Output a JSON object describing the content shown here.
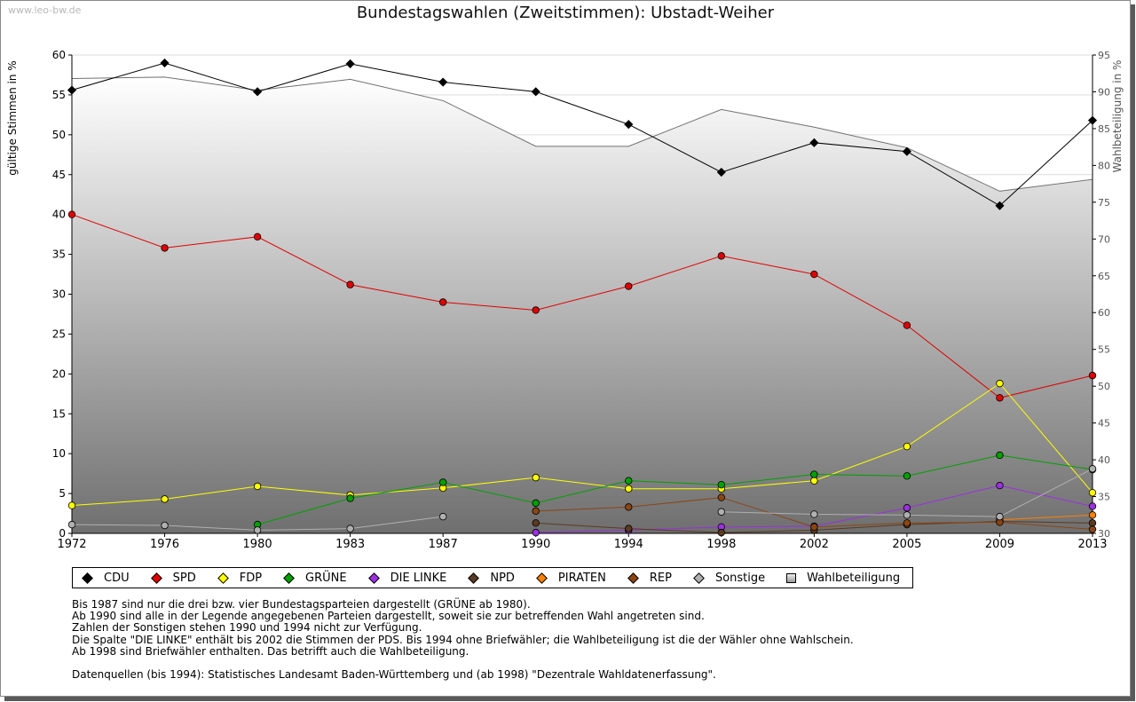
{
  "watermark": "www.leo-bw.de",
  "chart_data": {
    "type": "line",
    "title": "Bundestagswahlen (Zweitstimmen): Ubstadt-Weiher",
    "ylabel": "gültige Stimmen in %",
    "y2label": "Wahlbeteiligung in %",
    "x": [
      "1972",
      "1976",
      "1980",
      "1983",
      "1987",
      "1990",
      "1994",
      "1998",
      "2002",
      "2005",
      "2009",
      "2013"
    ],
    "ylim": [
      0,
      60
    ],
    "y2lim": [
      30,
      95
    ],
    "yticks": [
      "0",
      "5",
      "10",
      "15",
      "20",
      "25",
      "30",
      "35",
      "40",
      "45",
      "50",
      "55",
      "60"
    ],
    "y2ticks": [
      "30",
      "35",
      "40",
      "45",
      "50",
      "55",
      "60",
      "65",
      "70",
      "75",
      "80",
      "85",
      "90",
      "95"
    ],
    "grid": true,
    "legend_position": "bottom",
    "series": [
      {
        "name": "CDU",
        "color": "#000000",
        "values": [
          55.6,
          59.0,
          55.4,
          58.9,
          56.6,
          55.4,
          51.3,
          45.3,
          49.0,
          47.9,
          41.1,
          51.8
        ]
      },
      {
        "name": "SPD",
        "color": "#e00000",
        "values": [
          40.0,
          35.8,
          37.2,
          31.2,
          29.0,
          28.0,
          31.0,
          34.8,
          32.5,
          26.1,
          17.0,
          19.8
        ]
      },
      {
        "name": "FDP",
        "color": "#ffff00",
        "values": [
          3.5,
          4.3,
          5.9,
          4.8,
          5.7,
          7.0,
          5.6,
          5.6,
          6.6,
          10.9,
          18.8,
          5.1
        ]
      },
      {
        "name": "GRÜNE",
        "color": "#00a000",
        "values": [
          null,
          null,
          1.1,
          4.4,
          6.4,
          3.8,
          6.6,
          6.1,
          7.4,
          7.2,
          9.8,
          8.0
        ]
      },
      {
        "name": "DIE LINKE",
        "color": "#9a30e0",
        "values": [
          null,
          null,
          null,
          null,
          null,
          0.1,
          0.4,
          0.8,
          0.9,
          3.2,
          6.0,
          3.4
        ]
      },
      {
        "name": "NPD",
        "color": "#5a3a20",
        "values": [
          null,
          null,
          null,
          null,
          null,
          1.3,
          0.6,
          0.1,
          0.4,
          1.1,
          1.5,
          1.3
        ]
      },
      {
        "name": "PIRATEN",
        "color": "#ff8000",
        "values": [
          null,
          null,
          null,
          null,
          null,
          null,
          null,
          null,
          null,
          null,
          1.7,
          2.3
        ]
      },
      {
        "name": "REP",
        "color": "#8b4513",
        "values": [
          null,
          null,
          null,
          null,
          null,
          2.8,
          3.3,
          4.5,
          0.8,
          1.3,
          1.4,
          0.5
        ]
      },
      {
        "name": "Sonstige",
        "color": "#b0b0b0",
        "values": [
          1.1,
          1.0,
          0.4,
          0.6,
          2.1,
          null,
          null,
          2.7,
          2.4,
          2.3,
          2.1,
          8.1
        ]
      }
    ],
    "turnout": {
      "name": "Wahlbeteiligung",
      "values": [
        91.8,
        92.0,
        90.2,
        91.7,
        88.8,
        82.6,
        82.6,
        87.6,
        85.2,
        82.4,
        76.5,
        78.1
      ]
    }
  },
  "notes": [
    "Bis 1987 sind nur die drei bzw. vier Bundestagsparteien dargestellt (GRÜNE ab 1980).",
    "Ab 1990 sind alle in der Legende angegebenen Parteien dargestellt, soweit sie zur betreffenden Wahl angetreten sind.",
    "Zahlen der Sonstigen stehen 1990 und 1994 nicht zur Verfügung.",
    "Die Spalte \"DIE LINKE\" enthält bis 2002 die Stimmen der PDS. Bis 1994 ohne Briefwähler; die Wahlbeteiligung ist die der Wähler ohne Wahlschein.",
    "Ab 1998 sind Briefwähler enthalten. Das betrifft auch die Wahlbeteiligung."
  ],
  "source": "Datenquellen (bis 1994): Statistisches Landesamt Baden-Württemberg und (ab 1998) \"Dezentrale Wahldatenerfassung\"."
}
